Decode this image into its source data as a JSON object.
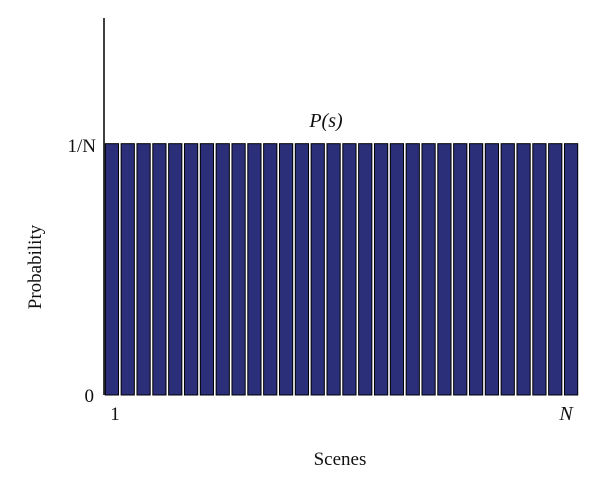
{
  "chart_data": {
    "type": "bar",
    "annotation": "P(s)",
    "xlabel": "Scenes",
    "ylabel": "Probability",
    "x_tick_labels": [
      "1",
      "N"
    ],
    "y_tick_labels": [
      "0",
      "1/N"
    ],
    "bar_count": 30,
    "bar_value": 1,
    "bar_value_note": "each bar equals 1/N",
    "ylim": [
      0,
      1.5
    ],
    "grid": false,
    "legend": "none",
    "colors": {
      "bar_fill": "#2b2e78",
      "bar_stroke": "#000000"
    }
  }
}
